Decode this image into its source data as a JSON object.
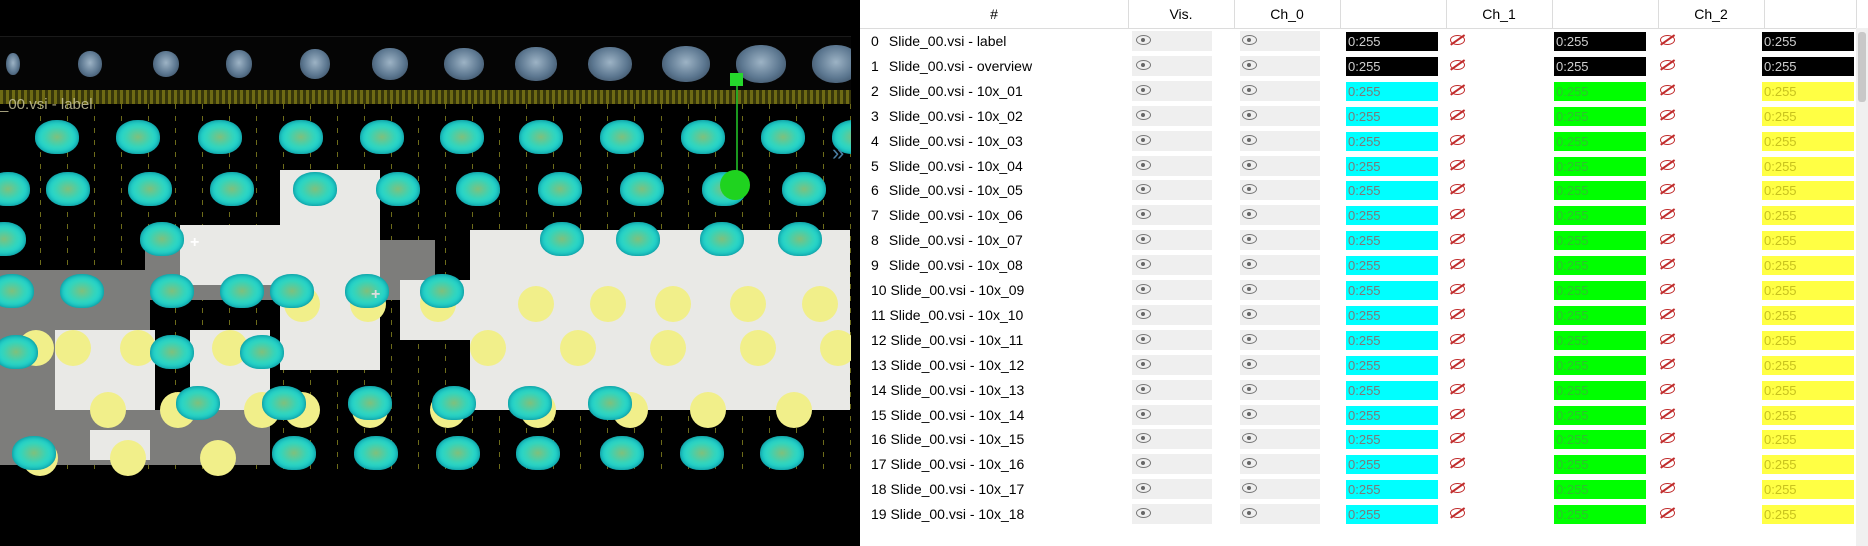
{
  "viewer": {
    "layer_label": "_00.vsi - label"
  },
  "table": {
    "columns": [
      "#",
      "Vis.",
      "Ch_0",
      "",
      "Ch_1",
      "",
      "Ch_2",
      ""
    ],
    "rows": [
      {
        "index": "0",
        "name": "Slide_00.vsi - label",
        "ch0": "0:255",
        "ch1": "0:255",
        "ch2": "0:255",
        "vis": true
      },
      {
        "index": "1",
        "name": "Slide_00.vsi - overview",
        "ch0": "0:255",
        "ch1": "0:255",
        "ch2": "0:255",
        "vis": true
      },
      {
        "index": "2",
        "name": "Slide_00.vsi - 10x_01",
        "ch0": "0:255",
        "ch1": "0:255",
        "ch2": "0:255",
        "vis": true
      },
      {
        "index": "3",
        "name": "Slide_00.vsi - 10x_02",
        "ch0": "0:255",
        "ch1": "0:255",
        "ch2": "0:255",
        "vis": true
      },
      {
        "index": "4",
        "name": "Slide_00.vsi - 10x_03",
        "ch0": "0:255",
        "ch1": "0:255",
        "ch2": "0:255",
        "vis": true
      },
      {
        "index": "5",
        "name": "Slide_00.vsi - 10x_04",
        "ch0": "0:255",
        "ch1": "0:255",
        "ch2": "0:255",
        "vis": true
      },
      {
        "index": "6",
        "name": "Slide_00.vsi - 10x_05",
        "ch0": "0:255",
        "ch1": "0:255",
        "ch2": "0:255",
        "vis": true
      },
      {
        "index": "7",
        "name": "Slide_00.vsi - 10x_06",
        "ch0": "0:255",
        "ch1": "0:255",
        "ch2": "0:255",
        "vis": true
      },
      {
        "index": "8",
        "name": "Slide_00.vsi - 10x_07",
        "ch0": "0:255",
        "ch1": "0:255",
        "ch2": "0:255",
        "vis": true
      },
      {
        "index": "9",
        "name": "Slide_00.vsi - 10x_08",
        "ch0": "0:255",
        "ch1": "0:255",
        "ch2": "0:255",
        "vis": true
      },
      {
        "index": "10",
        "name": "Slide_00.vsi - 10x_09",
        "ch0": "0:255",
        "ch1": "0:255",
        "ch2": "0:255",
        "vis": true
      },
      {
        "index": "11",
        "name": "Slide_00.vsi - 10x_10",
        "ch0": "0:255",
        "ch1": "0:255",
        "ch2": "0:255",
        "vis": true
      },
      {
        "index": "12",
        "name": "Slide_00.vsi - 10x_11",
        "ch0": "0:255",
        "ch1": "0:255",
        "ch2": "0:255",
        "vis": true
      },
      {
        "index": "13",
        "name": "Slide_00.vsi - 10x_12",
        "ch0": "0:255",
        "ch1": "0:255",
        "ch2": "0:255",
        "vis": true
      },
      {
        "index": "14",
        "name": "Slide_00.vsi - 10x_13",
        "ch0": "0:255",
        "ch1": "0:255",
        "ch2": "0:255",
        "vis": true
      },
      {
        "index": "15",
        "name": "Slide_00.vsi - 10x_14",
        "ch0": "0:255",
        "ch1": "0:255",
        "ch2": "0:255",
        "vis": true
      },
      {
        "index": "16",
        "name": "Slide_00.vsi - 10x_15",
        "ch0": "0:255",
        "ch1": "0:255",
        "ch2": "0:255",
        "vis": true
      },
      {
        "index": "17",
        "name": "Slide_00.vsi - 10x_16",
        "ch0": "0:255",
        "ch1": "0:255",
        "ch2": "0:255",
        "vis": true
      },
      {
        "index": "18",
        "name": "Slide_00.vsi - 10x_17",
        "ch0": "0:255",
        "ch1": "0:255",
        "ch2": "0:255",
        "vis": true
      },
      {
        "index": "19",
        "name": "Slide_00.vsi - 10x_18",
        "ch0": "0:255",
        "ch1": "0:255",
        "ch2": "0:255",
        "vis": true
      }
    ]
  },
  "colors": {
    "label_overview_channel": "#000000",
    "ch0": "#00ffff",
    "ch1": "#00ff00",
    "ch2": "#ffff44",
    "ch0_label_text": "#7a7a7a",
    "selected_marker": "#25d82c"
  },
  "icons": {
    "visible": "eye-icon",
    "channel_hidden": "eye-slash-icon",
    "viewer_marker": "crosshair-icon",
    "panel_toggle": "chevron-right-icon",
    "cursor": "mouse-pointer-icon"
  }
}
